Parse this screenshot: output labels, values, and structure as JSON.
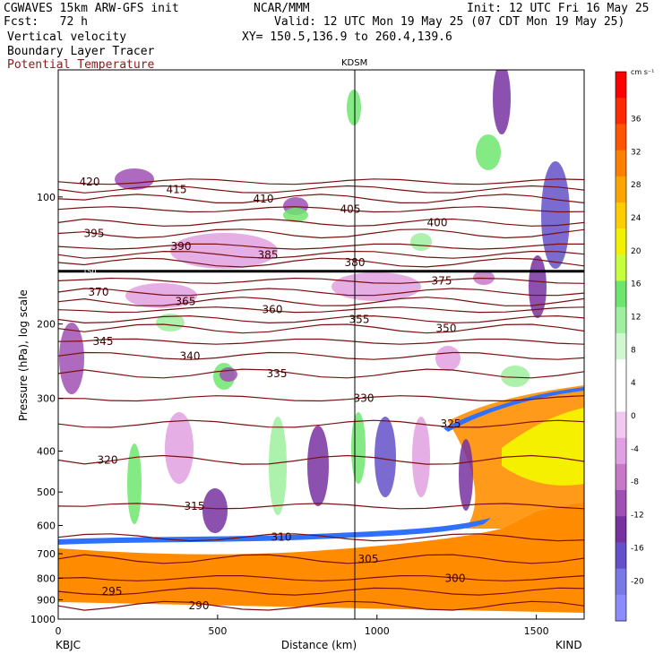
{
  "header": {
    "model": "CGWAVES 15km ARW-GFS init",
    "org": "NCAR/MMM",
    "init": "Init: 12 UTC Fri 16 May 25",
    "fcst": "Fcst:   72 h",
    "valid": "Valid: 12 UTC Mon 19 May 25 (07 CDT Mon 19 May 25)",
    "field1": "Vertical velocity",
    "field2": "Boundary Layer Tracer",
    "field3": "Potential Temperature",
    "xy": "XY= 150.5,136.9 to 260.4,139.6",
    "station_mid": "KDSM",
    "station_left": "KBJC",
    "station_right": "KIND",
    "field3_color": "#8b1a1a"
  },
  "chart_data": {
    "type": "heatmap",
    "xlabel": "Distance (km)",
    "ylabel": "Pressure (hPa), log scale",
    "xlim": [
      0,
      1650
    ],
    "x_ticks": [
      "0",
      "500",
      "1000",
      "1500"
    ],
    "ylim": [
      1000,
      50
    ],
    "y_ticks": [
      "100",
      "200",
      "300",
      "400",
      "500",
      "600",
      "700",
      "800",
      "900",
      "1000"
    ],
    "y_scale": "log",
    "colorbar": {
      "unit": "cm s⁻¹",
      "ticks": [
        "36",
        "32",
        "28",
        "24",
        "20",
        "16",
        "12",
        "8",
        "4",
        "0",
        "-4",
        "-8",
        "-12",
        "-16",
        "-20"
      ],
      "colors": [
        "#ff0000",
        "#ff2a00",
        "#ff5500",
        "#ff7f00",
        "#ffa500",
        "#ffcc00",
        "#f0f000",
        "#c8ff3c",
        "#6ee66e",
        "#9ef09e",
        "#d0f7d0",
        "#ffffff",
        "#ffffff",
        "#f0c8f0",
        "#e1a0e1",
        "#c878c8",
        "#a050b4",
        "#7832a0",
        "#6450c8",
        "#7878e6",
        "#8c8cff"
      ]
    },
    "theta_contours": [
      {
        "label": "420",
        "p": 92
      },
      {
        "label": "415",
        "p": 96
      },
      {
        "label": "410",
        "p": 101
      },
      {
        "label": "405",
        "p": 107
      },
      {
        "label": "400",
        "p": 115
      },
      {
        "label": "395",
        "p": 122
      },
      {
        "label": "390",
        "p": 131
      },
      {
        "label": "385",
        "p": 137
      },
      {
        "label": "380",
        "p": 143
      },
      {
        "label": "375",
        "p": 158
      },
      {
        "label": "370",
        "p": 168
      },
      {
        "label": "365",
        "p": 177
      },
      {
        "label": "360",
        "p": 185
      },
      {
        "label": "355",
        "p": 195
      },
      {
        "label": "350",
        "p": 205
      },
      {
        "label": "345",
        "p": 220
      },
      {
        "label": "340",
        "p": 238
      },
      {
        "label": "335",
        "p": 262
      },
      {
        "label": "330",
        "p": 300
      },
      {
        "label": "325",
        "p": 345
      },
      {
        "label": "320",
        "p": 420
      },
      {
        "label": "315",
        "p": 540
      },
      {
        "label": "310",
        "p": 640
      },
      {
        "label": "305",
        "p": 720
      },
      {
        "label": "300",
        "p": 800
      },
      {
        "label": "295",
        "p": 860
      },
      {
        "label": "290",
        "p": 930
      }
    ],
    "tropopause_label": "150"
  }
}
